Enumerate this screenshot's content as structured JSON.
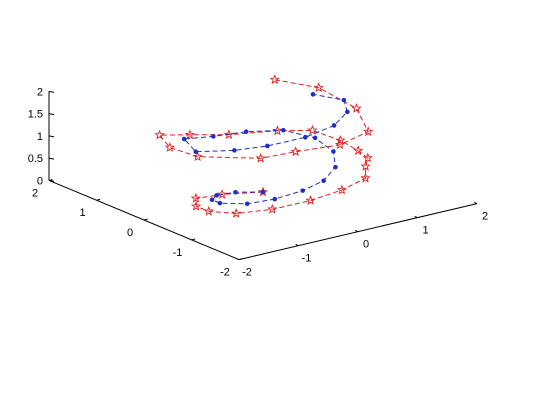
{
  "chart_data": {
    "type": "line",
    "projection": "3d",
    "grid": false,
    "title": "",
    "xlabel": "",
    "ylabel": "",
    "zlabel": "",
    "xlim": [
      -2,
      2
    ],
    "ylim": [
      -2,
      2
    ],
    "zlim": [
      0,
      2
    ],
    "x_ticks": [
      "-2",
      "-1",
      "0",
      "1",
      "2"
    ],
    "y_ticks": [
      "-2",
      "-1",
      "0",
      "1",
      "2"
    ],
    "z_ticks": [
      "0",
      "0.5",
      "1",
      "1.5",
      "2"
    ],
    "series": [
      {
        "marker": "star",
        "line": "dashed",
        "color": "#dd2222",
        "points": [
          [
            0.0,
            0.0,
            0.0
          ],
          [
            -0.56,
            0.16,
            0.05
          ],
          [
            -1.0,
            0.16,
            0.1
          ],
          [
            -1.26,
            -0.17,
            0.15
          ],
          [
            -1.31,
            -0.5,
            0.2
          ],
          [
            -1.13,
            -0.85,
            0.25
          ],
          [
            -0.69,
            -1.06,
            0.3
          ],
          [
            -0.11,
            -1.14,
            0.35
          ],
          [
            0.44,
            -1.11,
            0.4
          ],
          [
            0.94,
            -0.98,
            0.45
          ],
          [
            1.19,
            -0.67,
            0.5
          ],
          [
            1.37,
            -0.49,
            0.55
          ],
          [
            1.4,
            -0.25,
            0.6
          ],
          [
            1.3,
            0.0,
            0.75
          ],
          [
            1.03,
            0.25,
            0.95
          ],
          [
            0.53,
            0.36,
            1.05
          ],
          [
            -0.15,
            0.53,
            1.1
          ],
          [
            -0.63,
            0.75,
            1.15
          ],
          [
            -1.02,
            0.9,
            1.2
          ],
          [
            -1.31,
            0.32,
            1.27
          ],
          [
            -1.33,
            -0.29,
            1.34
          ],
          [
            -0.75,
            -0.89,
            1.39
          ],
          [
            -0.25,
            -1.0,
            1.43
          ],
          [
            0.36,
            -1.17,
            1.47
          ],
          [
            0.93,
            -1.05,
            1.53
          ],
          [
            1.3,
            -0.34,
            1.62
          ],
          [
            1.28,
            0.43,
            1.75
          ],
          [
            0.9,
            0.88,
            1.85
          ]
        ]
      },
      {
        "marker": "dot",
        "line": "dashed",
        "color": "#1f2fbf",
        "points": [
          [
            0.0,
            0.0,
            0.0
          ],
          [
            -0.36,
            0.13,
            0.05
          ],
          [
            -0.7,
            0.1,
            0.1
          ],
          [
            -0.92,
            -0.08,
            0.15
          ],
          [
            -0.98,
            -0.32,
            0.2
          ],
          [
            -0.76,
            -0.62,
            0.25
          ],
          [
            -0.4,
            -0.75,
            0.3
          ],
          [
            0.06,
            -0.76,
            0.35
          ],
          [
            0.46,
            -0.7,
            0.42
          ],
          [
            0.81,
            -0.51,
            0.53
          ],
          [
            1.0,
            -0.23,
            0.7
          ],
          [
            0.9,
            0.03,
            0.92
          ],
          [
            0.55,
            0.26,
            1.1
          ],
          [
            0.02,
            0.38,
            1.18
          ],
          [
            -0.5,
            0.42,
            1.22
          ],
          [
            -0.95,
            0.47,
            1.28
          ],
          [
            -1.21,
            -0.1,
            1.33
          ],
          [
            -0.84,
            -0.45,
            1.4
          ],
          [
            -0.43,
            -0.63,
            1.45
          ],
          [
            0.12,
            -0.74,
            1.52
          ],
          [
            0.62,
            -0.72,
            1.62
          ],
          [
            0.93,
            -0.61,
            1.78
          ],
          [
            1.0,
            -0.45,
            1.95
          ],
          [
            0.76,
            -0.1,
            2.0
          ]
        ]
      }
    ]
  }
}
